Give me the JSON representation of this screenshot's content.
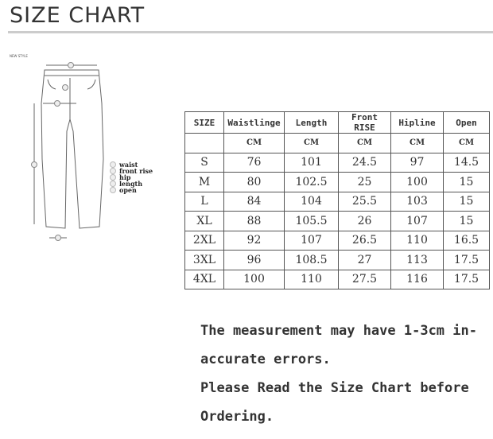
{
  "title": "SIZE CHART",
  "new_style_label": "NEW STYLE",
  "legend": [
    "waist",
    "front rise",
    "hip",
    "length",
    "open"
  ],
  "table": {
    "headers": [
      "SIZE",
      "Waistlinge",
      "Length",
      "Front RISE",
      "Hipline",
      "Open"
    ],
    "units": [
      "",
      "CM",
      "CM",
      "CM",
      "CM",
      "CM"
    ],
    "rows": [
      [
        "S",
        "76",
        "101",
        "24.5",
        "97",
        "14.5"
      ],
      [
        "M",
        "80",
        "102.5",
        "25",
        "100",
        "15"
      ],
      [
        "L",
        "84",
        "104",
        "25.5",
        "103",
        "15"
      ],
      [
        "XL",
        "88",
        "105.5",
        "26",
        "107",
        "15"
      ],
      [
        "2XL",
        "92",
        "107",
        "26.5",
        "110",
        "16.5"
      ],
      [
        "3XL",
        "96",
        "108.5",
        "27",
        "113",
        "17.5"
      ],
      [
        "4XL",
        "100",
        "110",
        "27.5",
        "116",
        "17.5"
      ]
    ]
  },
  "notes": [
    "The measurement may have 1-3cm in-",
    "accurate errors.",
    "Please Read the Size Chart before",
    "Ordering."
  ]
}
